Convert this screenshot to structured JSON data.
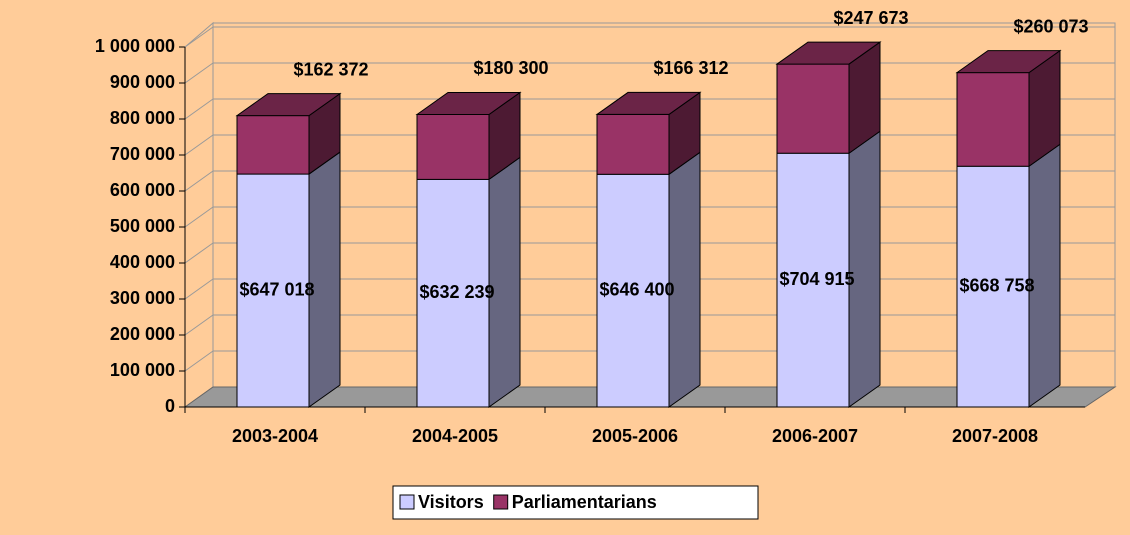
{
  "chart_data": {
    "type": "bar",
    "stacked": true,
    "three_d": true,
    "categories": [
      "2003-2004",
      "2004-2005",
      "2005-2006",
      "2006-2007",
      "2007-2008"
    ],
    "series": [
      {
        "name": "Visitors",
        "color": "#CCCCFF",
        "values": [
          647018,
          632239,
          646400,
          704915,
          668758
        ],
        "value_labels": [
          "$647 018",
          "$632 239",
          "$646 400",
          "$704 915",
          "$668 758"
        ]
      },
      {
        "name": "Parliamentarians",
        "color": "#993366",
        "values": [
          162372,
          180300,
          166312,
          247673,
          260073
        ],
        "value_labels": [
          "$162 372",
          "$180 300",
          "$166 312",
          "$247 673",
          "$260 073"
        ]
      }
    ],
    "ylim": [
      0,
      1000000
    ],
    "yticks": [
      0,
      {
        "value": 100000,
        "label": "100 000"
      },
      {
        "value": 200000,
        "label": "200 000"
      },
      {
        "value": 300000,
        "label": "300 000"
      },
      {
        "value": 400000,
        "label": "400 000"
      },
      {
        "value": 500000,
        "label": "500 000"
      },
      {
        "value": 600000,
        "label": "600 000"
      },
      {
        "value": 700000,
        "label": "700 000"
      },
      {
        "value": 800000,
        "label": "800 000"
      },
      {
        "value": 900000,
        "label": "900 000"
      },
      {
        "value": 1000000,
        "label": "1 000 000"
      }
    ],
    "grid": true,
    "legend": "bottom"
  }
}
